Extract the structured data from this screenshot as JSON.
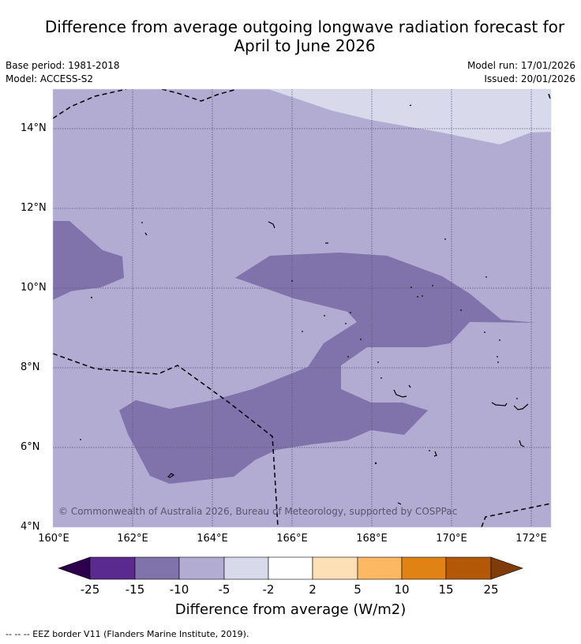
{
  "title_line1": "Difference from average outgoing longwave radiation forecast for",
  "title_line2": "April to June 2026",
  "base_period": "Base period: 1981-2018",
  "model": "Model: ACCESS-S2",
  "model_run": "Model run: 17/01/2026",
  "issued": "Issued: 20/01/2026",
  "copyright": "© Commonwealth of Australia 2026, Bureau of Meteorology, supported by COSPPac",
  "lat_labels": [
    "14°N",
    "12°N",
    "10°N",
    "8°N",
    "6°N",
    "4°N"
  ],
  "lon_labels": [
    "160°E",
    "162°E",
    "164°E",
    "166°E",
    "168°E",
    "170°E",
    "172°E"
  ],
  "colorbar": {
    "ticks": [
      "-25",
      "-15",
      "-10",
      "-5",
      "-2",
      "2",
      "5",
      "10",
      "15",
      "25"
    ],
    "colors": [
      "#2d004b",
      "#5a2a8f",
      "#8073ac",
      "#b2abd2",
      "#d8daeb",
      "#ffffff",
      "#fee0b6",
      "#fdb863",
      "#e08214",
      "#b35806",
      "#7f3b08"
    ],
    "title": "Difference from average (W/m2)"
  },
  "footnote": "--  --  -- EEZ border V11 (Flanders Marine Institute, 2019).",
  "map_colors": {
    "base": "#b2abd2",
    "light": "#d8daeb",
    "dark": "#8073ac"
  }
}
